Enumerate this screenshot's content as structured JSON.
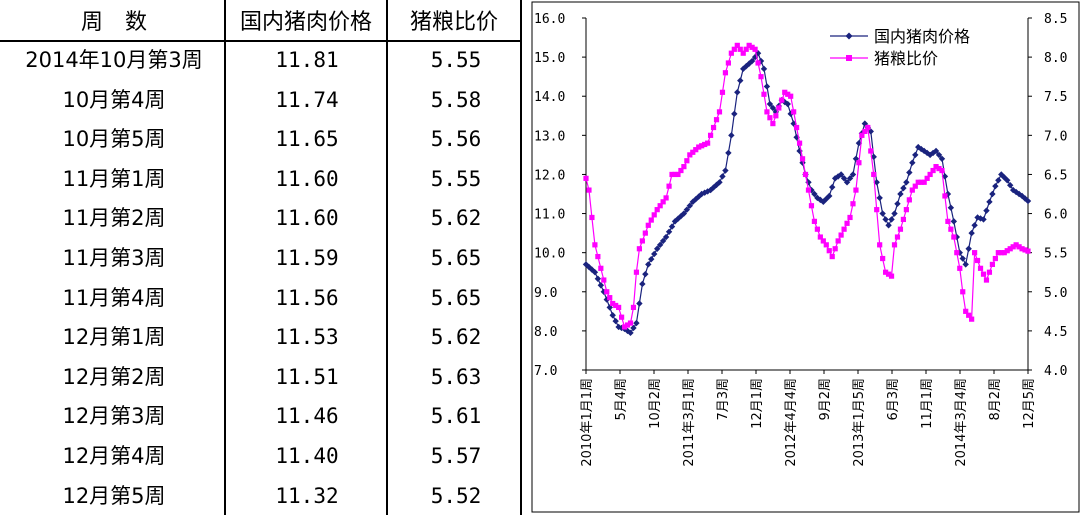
{
  "table": {
    "headers": [
      "周　数",
      "国内猪肉价格",
      "猪粮比价"
    ],
    "rows": [
      [
        "2014年10月第3周",
        "11.81",
        "5.55"
      ],
      [
        "10月第4周",
        "11.74",
        "5.58"
      ],
      [
        "10月第5周",
        "11.65",
        "5.56"
      ],
      [
        "11月第1周",
        "11.60",
        "5.55"
      ],
      [
        "11月第2周",
        "11.60",
        "5.62"
      ],
      [
        "11月第3周",
        "11.59",
        "5.65"
      ],
      [
        "11月第4周",
        "11.56",
        "5.65"
      ],
      [
        "12月第1周",
        "11.53",
        "5.62"
      ],
      [
        "12月第2周",
        "11.51",
        "5.63"
      ],
      [
        "12月第3周",
        "11.46",
        "5.61"
      ],
      [
        "12月第4周",
        "11.40",
        "5.57"
      ],
      [
        "12月第5周",
        "11.32",
        "5.52"
      ]
    ]
  },
  "chart_data": {
    "type": "line",
    "left_axis": {
      "min": 7.0,
      "max": 16.0,
      "ticks": [
        "7.0",
        "8.0",
        "9.0",
        "10.0",
        "11.0",
        "12.0",
        "13.0",
        "14.0",
        "15.0",
        "16.0"
      ]
    },
    "right_axis": {
      "min": 4.0,
      "max": 8.5,
      "ticks": [
        "4.0",
        "4.5",
        "5.0",
        "5.5",
        "6.0",
        "6.5",
        "7.0",
        "7.5",
        "8.0",
        "8.5"
      ]
    },
    "x_tick_labels": [
      "2010年1月1周",
      "5月4周",
      "10月2周",
      "2011年3月1周",
      "7月3周",
      "12月1周",
      "2012年4月4周",
      "9月2周",
      "2013年1月5周",
      "6月3周",
      "11月1周",
      "2014年3月4周",
      "8月2周",
      "12月5周"
    ],
    "legend_position": "top-right",
    "grid": false,
    "series": [
      {
        "name": "国内猪肉价格",
        "axis": "left",
        "color": "#1a237e",
        "marker": "diamond",
        "keypoints": [
          [
            0,
            9.7
          ],
          [
            3,
            9.5
          ],
          [
            6,
            9.0
          ],
          [
            9,
            8.4
          ],
          [
            11,
            8.1
          ],
          [
            13,
            8.05
          ],
          [
            15,
            7.95
          ],
          [
            17,
            8.2
          ],
          [
            19,
            9.2
          ],
          [
            21,
            9.7
          ],
          [
            24,
            10.1
          ],
          [
            27,
            10.4
          ],
          [
            30,
            10.8
          ],
          [
            33,
            11.0
          ],
          [
            36,
            11.3
          ],
          [
            39,
            11.5
          ],
          [
            42,
            11.6
          ],
          [
            45,
            11.8
          ],
          [
            47,
            12.1
          ],
          [
            49,
            13.0
          ],
          [
            51,
            14.1
          ],
          [
            53,
            14.7
          ],
          [
            56,
            14.9
          ],
          [
            58,
            15.1
          ],
          [
            60,
            14.7
          ],
          [
            62,
            13.8
          ],
          [
            64,
            13.6
          ],
          [
            66,
            13.9
          ],
          [
            68,
            13.8
          ],
          [
            70,
            13.3
          ],
          [
            72,
            12.6
          ],
          [
            74,
            12.0
          ],
          [
            76,
            11.6
          ],
          [
            78,
            11.4
          ],
          [
            80,
            11.3
          ],
          [
            82,
            11.45
          ],
          [
            84,
            11.9
          ],
          [
            86,
            12.0
          ],
          [
            88,
            11.8
          ],
          [
            90,
            12.0
          ],
          [
            92,
            12.8
          ],
          [
            94,
            13.3
          ],
          [
            96,
            13.1
          ],
          [
            98,
            11.8
          ],
          [
            100,
            11.0
          ],
          [
            102,
            10.7
          ],
          [
            104,
            11.0
          ],
          [
            106,
            11.5
          ],
          [
            108,
            11.8
          ],
          [
            110,
            12.3
          ],
          [
            112,
            12.7
          ],
          [
            114,
            12.6
          ],
          [
            116,
            12.5
          ],
          [
            118,
            12.6
          ],
          [
            120,
            12.4
          ],
          [
            122,
            11.5
          ],
          [
            124,
            10.8
          ],
          [
            126,
            10.0
          ],
          [
            128,
            9.7
          ],
          [
            130,
            10.5
          ],
          [
            132,
            10.9
          ],
          [
            134,
            10.85
          ],
          [
            136,
            11.3
          ],
          [
            138,
            11.7
          ],
          [
            140,
            12.0
          ],
          [
            142,
            11.85
          ],
          [
            144,
            11.6
          ],
          [
            147,
            11.45
          ],
          [
            149,
            11.32
          ]
        ]
      },
      {
        "name": "猪粮比价",
        "axis": "right",
        "color": "#ff00ff",
        "marker": "square",
        "keypoints": [
          [
            0,
            6.45
          ],
          [
            1,
            6.3
          ],
          [
            3,
            5.6
          ],
          [
            5,
            5.3
          ],
          [
            7,
            5.0
          ],
          [
            9,
            4.85
          ],
          [
            11,
            4.8
          ],
          [
            13,
            4.55
          ],
          [
            15,
            4.6
          ],
          [
            16,
            4.8
          ],
          [
            17,
            5.25
          ],
          [
            18,
            5.55
          ],
          [
            21,
            5.85
          ],
          [
            24,
            6.05
          ],
          [
            27,
            6.2
          ],
          [
            29,
            6.5
          ],
          [
            31,
            6.5
          ],
          [
            33,
            6.6
          ],
          [
            35,
            6.75
          ],
          [
            38,
            6.85
          ],
          [
            41,
            6.9
          ],
          [
            43,
            7.1
          ],
          [
            45,
            7.3
          ],
          [
            47,
            7.8
          ],
          [
            49,
            8.05
          ],
          [
            51,
            8.15
          ],
          [
            53,
            8.05
          ],
          [
            55,
            8.15
          ],
          [
            57,
            8.1
          ],
          [
            59,
            7.75
          ],
          [
            61,
            7.3
          ],
          [
            63,
            7.15
          ],
          [
            65,
            7.35
          ],
          [
            67,
            7.55
          ],
          [
            69,
            7.5
          ],
          [
            71,
            7.1
          ],
          [
            73,
            6.7
          ],
          [
            75,
            6.3
          ],
          [
            77,
            5.9
          ],
          [
            79,
            5.7
          ],
          [
            81,
            5.6
          ],
          [
            83,
            5.45
          ],
          [
            85,
            5.65
          ],
          [
            87,
            5.8
          ],
          [
            89,
            5.95
          ],
          [
            91,
            6.3
          ],
          [
            93,
            7.0
          ],
          [
            95,
            7.1
          ],
          [
            97,
            6.5
          ],
          [
            99,
            5.6
          ],
          [
            101,
            5.25
          ],
          [
            103,
            5.2
          ],
          [
            104,
            5.6
          ],
          [
            106,
            5.8
          ],
          [
            108,
            6.05
          ],
          [
            110,
            6.3
          ],
          [
            112,
            6.4
          ],
          [
            114,
            6.4
          ],
          [
            116,
            6.5
          ],
          [
            118,
            6.6
          ],
          [
            120,
            6.55
          ],
          [
            122,
            5.9
          ],
          [
            124,
            5.7
          ],
          [
            126,
            5.3
          ],
          [
            127,
            5.0
          ],
          [
            128,
            4.75
          ],
          [
            130,
            4.65
          ],
          [
            131,
            5.5
          ],
          [
            133,
            5.3
          ],
          [
            135,
            5.15
          ],
          [
            137,
            5.35
          ],
          [
            139,
            5.5
          ],
          [
            141,
            5.5
          ],
          [
            143,
            5.55
          ],
          [
            145,
            5.6
          ],
          [
            147,
            5.55
          ],
          [
            149,
            5.52
          ]
        ]
      }
    ]
  }
}
